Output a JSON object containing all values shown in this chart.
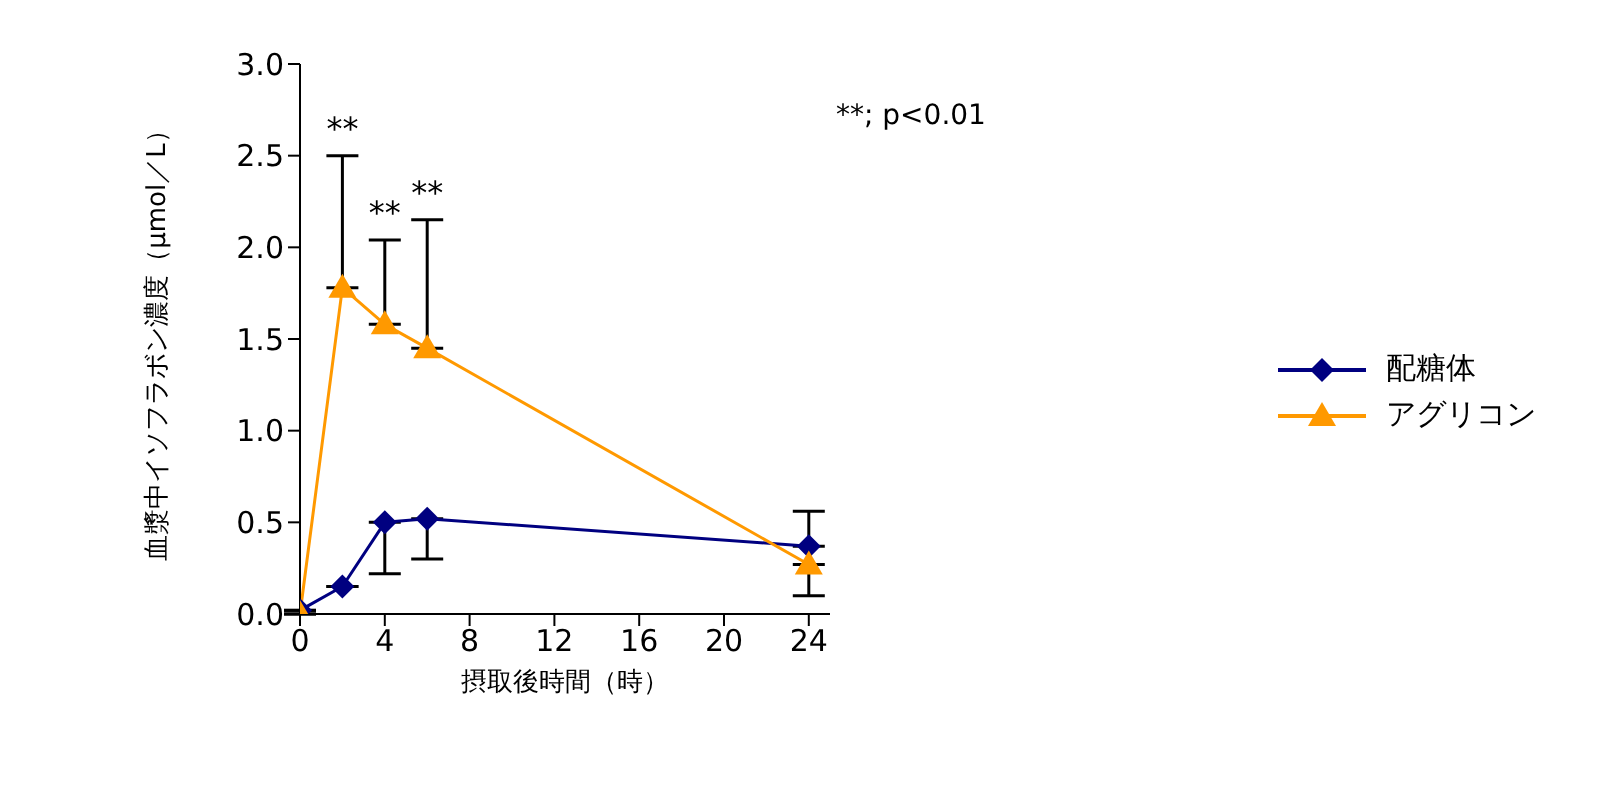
{
  "chart_data": {
    "type": "line",
    "xlabel": "摂取後時間（時）",
    "ylabel": "血漿中イソフラボン濃度（μmol／L）",
    "x": [
      0,
      2,
      4,
      6,
      24
    ],
    "series": [
      {
        "name": "配糖体",
        "color": "#000080",
        "marker": "diamond",
        "values": [
          0.02,
          0.15,
          0.5,
          0.52,
          0.37
        ],
        "errors": [
          null,
          null,
          [
            0.22,
            0.5
          ],
          [
            0.3,
            0.52
          ],
          [
            0.37,
            0.56
          ]
        ]
      },
      {
        "name": "アグリコン",
        "color": "#ff9900",
        "marker": "triangle",
        "values": [
          0,
          1.78,
          1.58,
          1.45,
          0.27
        ],
        "errors": [
          null,
          [
            1.78,
            2.5
          ],
          [
            1.58,
            2.04
          ],
          [
            1.45,
            2.15
          ],
          [
            0.1,
            0.27
          ]
        ]
      }
    ],
    "xlim": [
      0,
      25
    ],
    "xticks": [
      0,
      4,
      8,
      12,
      16,
      20,
      24
    ],
    "ylim": [
      0,
      3
    ],
    "yticks": [
      {
        "value": 0,
        "label": "0.0"
      },
      {
        "value": 0.5,
        "label": "0.5"
      },
      {
        "value": 1,
        "label": "1.0"
      },
      {
        "value": 1.5,
        "label": "1.5"
      },
      {
        "value": 2,
        "label": "2.0"
      },
      {
        "value": 2.5,
        "label": "2.5"
      },
      {
        "value": 3,
        "label": "3.0"
      }
    ],
    "annotations": [
      {
        "text": "**",
        "x": 2,
        "y": 2.5
      },
      {
        "text": "**",
        "x": 4,
        "y": 2.04
      },
      {
        "text": "**",
        "x": 6,
        "y": 2.15
      },
      "**; p<0.01"
    ],
    "legend": "right",
    "grid": false
  }
}
